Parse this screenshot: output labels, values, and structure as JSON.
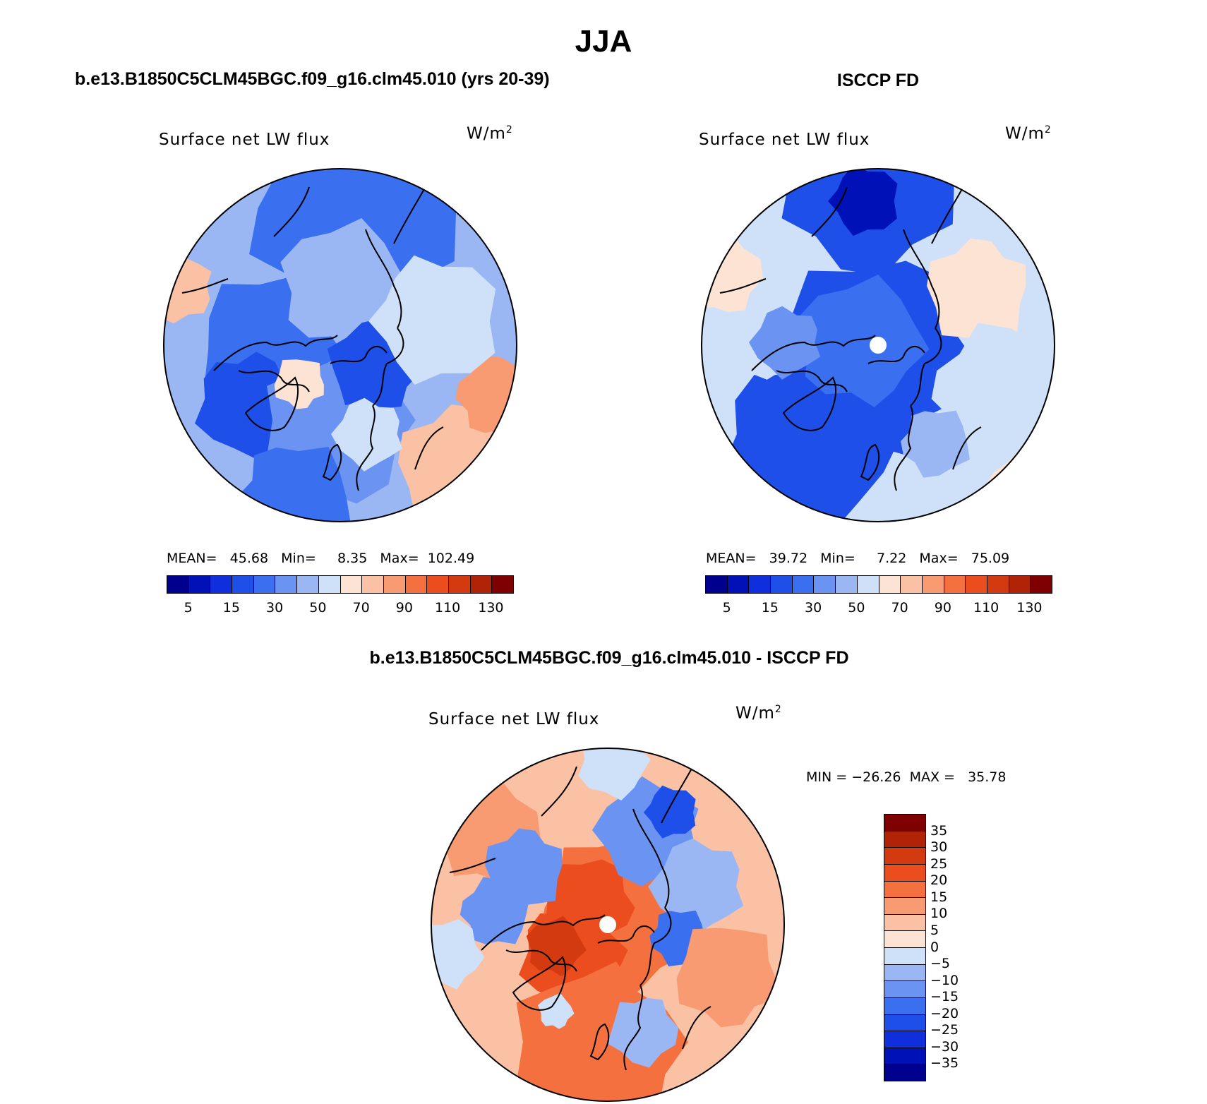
{
  "title": "JJA",
  "palette": [
    "#00008f",
    "#0011b8",
    "#0f2fdc",
    "#1e4fe8",
    "#3a6ff0",
    "#6a93f2",
    "#9ab7f4",
    "#cfe1f8",
    "#fde3d4",
    "#fbc1a4",
    "#f89a72",
    "#f4713f",
    "#eb4d1e",
    "#d33a10",
    "#b12306",
    "#7f0000"
  ],
  "panels": [
    {
      "title": "b.e13.B1850C5CLM45BGC.f09_g16.clm45.010 (yrs 20-39)",
      "label": "Surface net LW flux",
      "units": "W/m",
      "units_sup": "2",
      "stats": "MEAN=   45.68   Min=     8.35   Max=  102.49",
      "cbar_labels": [
        "5",
        "15",
        "30",
        "50",
        "70",
        "90",
        "110",
        "130"
      ],
      "map_style": "model"
    },
    {
      "title": "ISCCP FD",
      "label": "Surface net LW flux",
      "units": "W/m",
      "units_sup": "2",
      "stats": "MEAN=   39.72   Min=     7.22   Max=   75.09",
      "cbar_labels": [
        "5",
        "15",
        "30",
        "50",
        "70",
        "90",
        "110",
        "130"
      ],
      "map_style": "obs"
    },
    {
      "title": "b.e13.B1850C5CLM45BGC.f09_g16.clm45.010 - ISCCP FD",
      "label": "Surface net LW flux",
      "units": "W/m",
      "units_sup": "2",
      "stats": "MIN = −26.26  MAX =   35.78",
      "cbar_labels": [
        "35",
        "30",
        "25",
        "20",
        "15",
        "10",
        "5",
        "0",
        "−5",
        "−10",
        "−15",
        "−20",
        "−25",
        "−30",
        "−35"
      ],
      "map_style": "diff"
    }
  ],
  "diff_palette": [
    "#7f0000",
    "#b12306",
    "#d33a10",
    "#eb4d1e",
    "#f4713f",
    "#f89a72",
    "#fbc1a4",
    "#fde3d4",
    "#cfe1f8",
    "#9ab7f4",
    "#6a93f2",
    "#3a6ff0",
    "#1e4fe8",
    "#0f2fdc",
    "#0011b8",
    "#00008f"
  ]
}
